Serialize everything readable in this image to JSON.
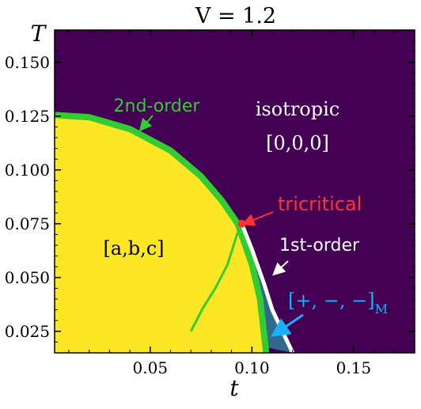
{
  "chart_data": {
    "type": "area",
    "title": "V = 1.2",
    "xlabel": "t",
    "ylabel": "T",
    "xlim": [
      0.003,
      0.18
    ],
    "ylim": [
      0.015,
      0.165
    ],
    "x_ticks": [
      0.05,
      0.1,
      0.15
    ],
    "x_tick_labels": [
      "0.05",
      "0.10",
      "0.15"
    ],
    "y_ticks": [
      0.025,
      0.05,
      0.075,
      0.1,
      0.125,
      0.15
    ],
    "y_tick_labels": [
      "0.025",
      "0.050",
      "0.075",
      "0.100",
      "0.125",
      "0.150"
    ],
    "grid": false,
    "regions": [
      {
        "name": "isotropic",
        "label": "isotropic",
        "sublabel": "[0,0,0]",
        "color": "#440154"
      },
      {
        "name": "ordered-abc",
        "label": "[a,b,c]",
        "color": "#fde725"
      },
      {
        "name": "mixed-M",
        "label": "[+, −, −]",
        "subscript": "M",
        "color": "#31688e"
      }
    ],
    "boundaries": [
      {
        "name": "2nd-order",
        "label": "2nd-order",
        "color": "#33cc33",
        "x": [
          0.003,
          0.02,
          0.04,
          0.06,
          0.075,
          0.085,
          0.093,
          0.1,
          0.104,
          0.107
        ],
        "y": [
          0.1255,
          0.1245,
          0.119,
          0.109,
          0.097,
          0.086,
          0.075,
          0.056,
          0.04,
          0.015
        ]
      },
      {
        "name": "1st-order",
        "label": "1st-order",
        "color": "#ffffff",
        "x": [
          0.095,
          0.1,
          0.106,
          0.11,
          0.113,
          0.116,
          0.12
        ],
        "y": [
          0.075,
          0.063,
          0.047,
          0.035,
          0.029,
          0.023,
          0.015
        ]
      },
      {
        "name": "inner-boundary",
        "color": "#33cc33",
        "x": [
          0.093,
          0.088,
          0.082,
          0.076,
          0.07
        ],
        "y": [
          0.071,
          0.056,
          0.045,
          0.036,
          0.025
        ]
      }
    ],
    "tricritical_point": {
      "label": "tricritical",
      "x": 0.095,
      "y": 0.075,
      "color": "#ff3333"
    },
    "annotations": {
      "second_order_color": "#33cc33",
      "tricritical_color": "#ff3333",
      "first_order_color": "#ffffff",
      "mixed_color": "#1ab0ff",
      "isotropic_color": "#ffffff"
    }
  }
}
